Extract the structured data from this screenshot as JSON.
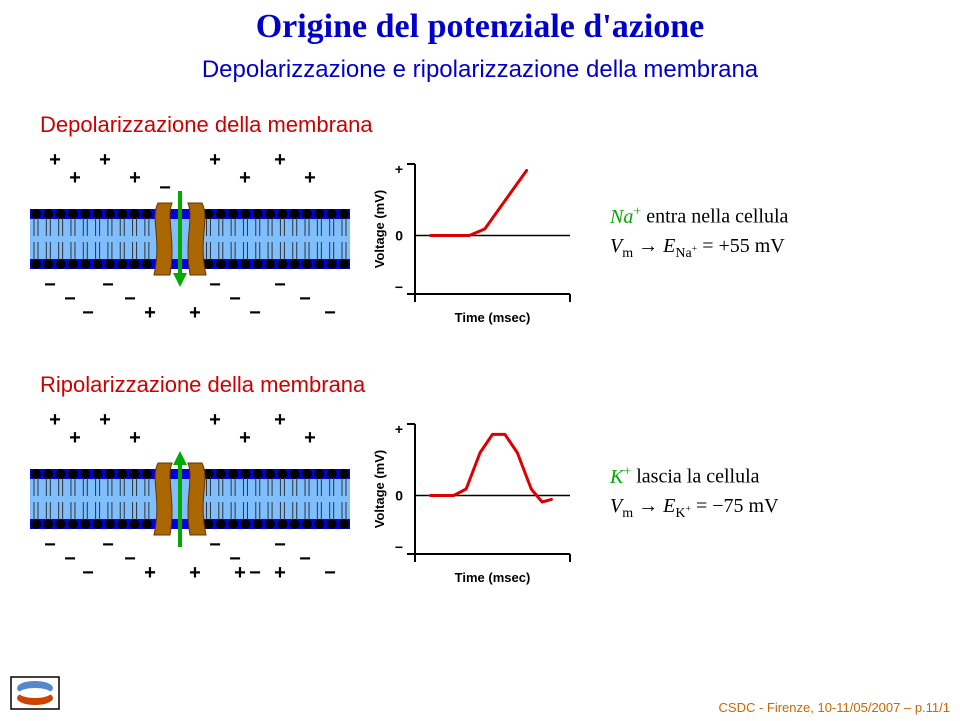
{
  "title": "Origine del potenziale d'azione",
  "subtitle": "Depolarizzazione e ripolarizzazione della membrana",
  "sections": {
    "depol": {
      "label": "Depolarizzazione della membrana",
      "ion_symbol": "Na",
      "ion_sup": "+",
      "verb": " entra nella cellula",
      "eq_lhs": "V",
      "eq_sub": "m",
      "eq_arrow": " → ",
      "eq_rhs_e": "E",
      "eq_rhs_sub": "Na",
      "eq_rhs_sup": "+",
      "eq_val": " = +55 mV",
      "membrane": {
        "top_sign": "+",
        "bot_sign": "−",
        "top_extra_minus": 1,
        "bot_extra_plus": 2,
        "channel": {
          "open": true,
          "flow_dir": "down",
          "flow_color": "#00aa00"
        },
        "colors": {
          "membrane_outer": "#0000dd",
          "membrane_head": "#000000",
          "tail": "#333333",
          "channel": "#aa6600",
          "sign_color": "#000000"
        }
      },
      "graph": {
        "ylabel": "Voltage (mV)",
        "xlabel": "Time (msec)",
        "yticks": [
          "+",
          "0",
          "−"
        ],
        "curve": [
          [
            0.1,
            0.55
          ],
          [
            0.35,
            0.55
          ],
          [
            0.45,
            0.5
          ],
          [
            0.6,
            0.25
          ],
          [
            0.72,
            0.05
          ]
        ],
        "curve_color": "#dd0000",
        "open_end": true
      }
    },
    "ripol": {
      "label": "Ripolarizzazione della membrana",
      "ion_symbol": "K",
      "ion_sup": "+",
      "verb": " lascia la cellula",
      "eq_lhs": "V",
      "eq_sub": "m",
      "eq_arrow": " → ",
      "eq_rhs_e": "E",
      "eq_rhs_sub": "K",
      "eq_rhs_sup": "+",
      "eq_val": " = −75 mV",
      "membrane": {
        "top_sign": "+",
        "bot_sign": "−",
        "top_extra_minus": 0,
        "bot_extra_plus": 4,
        "channel": {
          "open": true,
          "flow_dir": "up",
          "flow_color": "#00aa00"
        },
        "colors": {
          "membrane_outer": "#0000dd",
          "membrane_head": "#000000",
          "tail": "#333333",
          "channel": "#aa6600",
          "sign_color": "#000000"
        }
      },
      "graph": {
        "ylabel": "Voltage (mV)",
        "xlabel": "Time (msec)",
        "yticks": [
          "+",
          "0",
          "−"
        ],
        "curve": [
          [
            0.1,
            0.55
          ],
          [
            0.25,
            0.55
          ],
          [
            0.33,
            0.5
          ],
          [
            0.42,
            0.22
          ],
          [
            0.5,
            0.08
          ],
          [
            0.58,
            0.08
          ],
          [
            0.66,
            0.22
          ],
          [
            0.75,
            0.5
          ],
          [
            0.82,
            0.6
          ],
          [
            0.88,
            0.58
          ]
        ],
        "curve_color": "#dd0000",
        "open_end": false
      }
    }
  },
  "footer": {
    "text": "CSDC - Firenze, 10-11/05/2007 – p.11/1",
    "logo_colors": {
      "top": "#5588cc",
      "mid": "#ffffff",
      "bot": "#cc4400",
      "frame": "#000000"
    }
  }
}
